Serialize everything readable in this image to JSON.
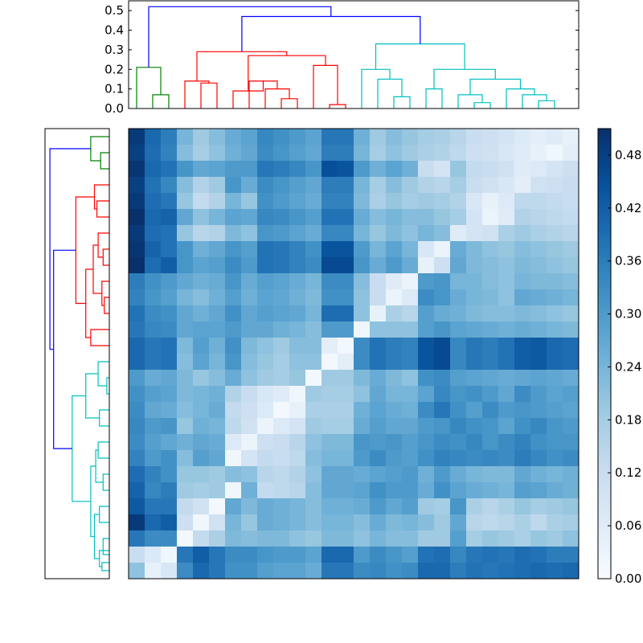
{
  "chart_data": {
    "type": "heatmap",
    "title": "",
    "description": "Clustered distance matrix with row and column dendrograms",
    "n": 28,
    "matrix": [
      [
        0.49,
        0.4,
        0.36,
        0.24,
        0.19,
        0.22,
        0.26,
        0.28,
        0.34,
        0.32,
        0.3,
        0.28,
        0.37,
        0.37,
        0.25,
        0.19,
        0.22,
        0.2,
        0.18,
        0.17,
        0.15,
        0.12,
        0.11,
        0.09,
        0.07,
        0.05,
        0.06,
        0.04
      ],
      [
        0.48,
        0.39,
        0.35,
        0.22,
        0.18,
        0.21,
        0.25,
        0.27,
        0.33,
        0.31,
        0.29,
        0.27,
        0.36,
        0.36,
        0.24,
        0.18,
        0.21,
        0.19,
        0.17,
        0.16,
        0.14,
        0.11,
        0.1,
        0.08,
        0.06,
        0.04,
        0.02,
        0.05
      ],
      [
        0.5,
        0.4,
        0.38,
        0.31,
        0.27,
        0.28,
        0.3,
        0.3,
        0.37,
        0.36,
        0.34,
        0.31,
        0.45,
        0.44,
        0.3,
        0.25,
        0.28,
        0.25,
        0.12,
        0.09,
        0.2,
        0.13,
        0.12,
        0.1,
        0.06,
        0.07,
        0.09,
        0.11
      ],
      [
        0.48,
        0.38,
        0.34,
        0.22,
        0.16,
        0.19,
        0.31,
        0.26,
        0.33,
        0.31,
        0.29,
        0.27,
        0.36,
        0.36,
        0.24,
        0.18,
        0.22,
        0.19,
        0.16,
        0.15,
        0.18,
        0.12,
        0.1,
        0.08,
        0.05,
        0.1,
        0.11,
        0.12
      ],
      [
        0.49,
        0.39,
        0.37,
        0.2,
        0.13,
        0.16,
        0.24,
        0.2,
        0.32,
        0.3,
        0.28,
        0.26,
        0.35,
        0.35,
        0.23,
        0.17,
        0.2,
        0.18,
        0.19,
        0.18,
        0.16,
        0.08,
        0.04,
        0.07,
        0.14,
        0.14,
        0.13,
        0.12
      ],
      [
        0.51,
        0.4,
        0.41,
        0.27,
        0.21,
        0.24,
        0.28,
        0.27,
        0.34,
        0.33,
        0.31,
        0.29,
        0.38,
        0.38,
        0.26,
        0.22,
        0.24,
        0.22,
        0.22,
        0.2,
        0.18,
        0.09,
        0.03,
        0.06,
        0.16,
        0.15,
        0.14,
        0.13
      ],
      [
        0.49,
        0.39,
        0.38,
        0.2,
        0.15,
        0.16,
        0.23,
        0.21,
        0.31,
        0.3,
        0.28,
        0.26,
        0.34,
        0.34,
        0.24,
        0.2,
        0.23,
        0.21,
        0.24,
        0.22,
        0.06,
        0.09,
        0.1,
        0.17,
        0.19,
        0.17,
        0.16,
        0.15
      ],
      [
        0.5,
        0.41,
        0.38,
        0.31,
        0.25,
        0.27,
        0.31,
        0.29,
        0.38,
        0.37,
        0.35,
        0.32,
        0.44,
        0.44,
        0.3,
        0.24,
        0.28,
        0.24,
        0.08,
        0.03,
        0.26,
        0.23,
        0.21,
        0.2,
        0.22,
        0.21,
        0.2,
        0.19
      ],
      [
        0.51,
        0.39,
        0.42,
        0.31,
        0.28,
        0.29,
        0.33,
        0.3,
        0.38,
        0.37,
        0.35,
        0.33,
        0.46,
        0.46,
        0.31,
        0.26,
        0.3,
        0.26,
        0.04,
        0.11,
        0.27,
        0.23,
        0.22,
        0.21,
        0.23,
        0.22,
        0.21,
        0.2
      ],
      [
        0.36,
        0.32,
        0.3,
        0.27,
        0.25,
        0.26,
        0.31,
        0.26,
        0.29,
        0.28,
        0.26,
        0.24,
        0.33,
        0.33,
        0.22,
        0.12,
        0.06,
        0.03,
        0.3,
        0.31,
        0.24,
        0.24,
        0.22,
        0.21,
        0.24,
        0.23,
        0.23,
        0.22
      ],
      [
        0.35,
        0.31,
        0.29,
        0.24,
        0.22,
        0.25,
        0.29,
        0.25,
        0.28,
        0.27,
        0.25,
        0.23,
        0.32,
        0.32,
        0.21,
        0.12,
        0.03,
        0.07,
        0.33,
        0.31,
        0.26,
        0.24,
        0.23,
        0.21,
        0.27,
        0.26,
        0.25,
        0.24
      ],
      [
        0.38,
        0.33,
        0.32,
        0.27,
        0.25,
        0.27,
        0.32,
        0.27,
        0.29,
        0.28,
        0.27,
        0.24,
        0.39,
        0.39,
        0.21,
        0.04,
        0.17,
        0.15,
        0.29,
        0.26,
        0.25,
        0.23,
        0.22,
        0.22,
        0.23,
        0.22,
        0.21,
        0.2
      ],
      [
        0.37,
        0.34,
        0.33,
        0.27,
        0.28,
        0.28,
        0.3,
        0.27,
        0.27,
        0.25,
        0.24,
        0.22,
        0.3,
        0.3,
        0.02,
        0.21,
        0.21,
        0.21,
        0.29,
        0.31,
        0.28,
        0.27,
        0.26,
        0.25,
        0.26,
        0.25,
        0.24,
        0.23
      ],
      [
        0.4,
        0.37,
        0.38,
        0.23,
        0.29,
        0.25,
        0.32,
        0.23,
        0.21,
        0.19,
        0.22,
        0.22,
        0.05,
        0.01,
        0.33,
        0.38,
        0.36,
        0.35,
        0.44,
        0.46,
        0.34,
        0.37,
        0.36,
        0.38,
        0.42,
        0.43,
        0.4,
        0.39
      ],
      [
        0.4,
        0.37,
        0.38,
        0.22,
        0.28,
        0.24,
        0.31,
        0.22,
        0.2,
        0.18,
        0.21,
        0.21,
        0.01,
        0.05,
        0.33,
        0.38,
        0.36,
        0.35,
        0.44,
        0.46,
        0.34,
        0.37,
        0.36,
        0.38,
        0.42,
        0.43,
        0.4,
        0.39
      ],
      [
        0.3,
        0.26,
        0.27,
        0.23,
        0.2,
        0.22,
        0.26,
        0.21,
        0.19,
        0.18,
        0.2,
        0.01,
        0.19,
        0.19,
        0.23,
        0.26,
        0.23,
        0.21,
        0.32,
        0.33,
        0.29,
        0.28,
        0.27,
        0.26,
        0.27,
        0.28,
        0.27,
        0.26
      ],
      [
        0.32,
        0.29,
        0.28,
        0.23,
        0.24,
        0.25,
        0.16,
        0.12,
        0.08,
        0.06,
        0.02,
        0.19,
        0.18,
        0.18,
        0.21,
        0.27,
        0.24,
        0.24,
        0.28,
        0.34,
        0.31,
        0.32,
        0.3,
        0.27,
        0.33,
        0.3,
        0.28,
        0.29
      ],
      [
        0.33,
        0.27,
        0.26,
        0.22,
        0.24,
        0.26,
        0.13,
        0.11,
        0.07,
        0.01,
        0.04,
        0.17,
        0.17,
        0.17,
        0.25,
        0.28,
        0.26,
        0.25,
        0.33,
        0.37,
        0.32,
        0.29,
        0.33,
        0.3,
        0.31,
        0.3,
        0.29,
        0.28
      ],
      [
        0.34,
        0.3,
        0.31,
        0.2,
        0.25,
        0.24,
        0.14,
        0.1,
        0.03,
        0.07,
        0.09,
        0.19,
        0.18,
        0.18,
        0.26,
        0.29,
        0.27,
        0.27,
        0.3,
        0.31,
        0.34,
        0.32,
        0.31,
        0.28,
        0.32,
        0.34,
        0.31,
        0.3
      ],
      [
        0.33,
        0.29,
        0.27,
        0.25,
        0.27,
        0.26,
        0.07,
        0.03,
        0.11,
        0.12,
        0.15,
        0.21,
        0.23,
        0.23,
        0.31,
        0.3,
        0.31,
        0.29,
        0.31,
        0.33,
        0.32,
        0.34,
        0.31,
        0.33,
        0.35,
        0.32,
        0.31,
        0.31
      ],
      [
        0.35,
        0.3,
        0.32,
        0.22,
        0.29,
        0.27,
        0.02,
        0.09,
        0.13,
        0.12,
        0.14,
        0.22,
        0.24,
        0.24,
        0.3,
        0.33,
        0.3,
        0.29,
        0.32,
        0.35,
        0.34,
        0.33,
        0.34,
        0.33,
        0.36,
        0.34,
        0.32,
        0.33
      ],
      [
        0.39,
        0.35,
        0.32,
        0.2,
        0.2,
        0.19,
        0.22,
        0.21,
        0.15,
        0.14,
        0.16,
        0.21,
        0.27,
        0.27,
        0.26,
        0.28,
        0.29,
        0.3,
        0.25,
        0.3,
        0.26,
        0.24,
        0.23,
        0.23,
        0.27,
        0.25,
        0.24,
        0.25
      ],
      [
        0.41,
        0.34,
        0.36,
        0.19,
        0.18,
        0.19,
        0.02,
        0.25,
        0.13,
        0.14,
        0.15,
        0.22,
        0.27,
        0.27,
        0.28,
        0.32,
        0.3,
        0.3,
        0.26,
        0.32,
        0.28,
        0.26,
        0.25,
        0.24,
        0.29,
        0.28,
        0.26,
        0.25
      ],
      [
        0.43,
        0.37,
        0.37,
        0.13,
        0.1,
        0.01,
        0.27,
        0.23,
        0.26,
        0.25,
        0.24,
        0.22,
        0.25,
        0.25,
        0.26,
        0.3,
        0.27,
        0.29,
        0.19,
        0.18,
        0.31,
        0.17,
        0.15,
        0.17,
        0.2,
        0.18,
        0.19,
        0.2
      ],
      [
        0.49,
        0.4,
        0.42,
        0.11,
        0.02,
        0.1,
        0.24,
        0.2,
        0.26,
        0.25,
        0.24,
        0.22,
        0.24,
        0.24,
        0.22,
        0.26,
        0.23,
        0.24,
        0.22,
        0.19,
        0.27,
        0.15,
        0.14,
        0.15,
        0.17,
        0.14,
        0.17,
        0.18
      ],
      [
        0.37,
        0.33,
        0.33,
        0.01,
        0.13,
        0.17,
        0.23,
        0.22,
        0.23,
        0.23,
        0.21,
        0.2,
        0.23,
        0.23,
        0.21,
        0.24,
        0.22,
        0.22,
        0.19,
        0.19,
        0.29,
        0.18,
        0.2,
        0.19,
        0.17,
        0.2,
        0.19,
        0.21
      ],
      [
        0.12,
        0.07,
        0.02,
        0.37,
        0.42,
        0.37,
        0.33,
        0.33,
        0.31,
        0.3,
        0.3,
        0.28,
        0.4,
        0.4,
        0.3,
        0.33,
        0.31,
        0.29,
        0.38,
        0.39,
        0.34,
        0.37,
        0.38,
        0.37,
        0.39,
        0.38,
        0.36,
        0.36
      ],
      [
        0.21,
        0.04,
        0.08,
        0.33,
        0.4,
        0.37,
        0.32,
        0.32,
        0.29,
        0.28,
        0.28,
        0.26,
        0.37,
        0.37,
        0.33,
        0.34,
        0.32,
        0.33,
        0.4,
        0.4,
        0.36,
        0.38,
        0.37,
        0.38,
        0.39,
        0.4,
        0.39,
        0.4
      ]
    ],
    "vmin": 0.0,
    "vmax": 0.51,
    "colormap": "Blues",
    "colorbar": {
      "ticks": [
        "0.00",
        "0.06",
        "0.12",
        "0.18",
        "0.24",
        "0.30",
        "0.36",
        "0.42",
        "0.48"
      ],
      "ticklabels": [
        "0.00",
        "0.06",
        "0.12",
        "0.18",
        "0.24",
        "0.30",
        "0.36",
        "0.42",
        "0.48"
      ]
    },
    "top_dendrogram": {
      "orientation": "top",
      "ylim": [
        0,
        0.55
      ],
      "yticks": [
        "0.0",
        "0.1",
        "0.2",
        "0.3",
        "0.4",
        "0.5"
      ],
      "links": [
        {
          "leaves": [
            1,
            2
          ],
          "h": 0.07,
          "color": "#008000"
        },
        {
          "leaves": [
            0,
            1.5
          ],
          "h": 0.21,
          "color": "#008000"
        },
        {
          "leaves": [
            4,
            5
          ],
          "h": 0.13,
          "color": "#ff0000"
        },
        {
          "leaves": [
            3,
            4.5
          ],
          "h": 0.14,
          "color": "#ff0000"
        },
        {
          "leaves": [
            9,
            10
          ],
          "h": 0.05,
          "color": "#ff0000"
        },
        {
          "leaves": [
            8,
            9.5
          ],
          "h": 0.1,
          "color": "#ff0000"
        },
        {
          "leaves": [
            7,
            8.75
          ],
          "h": 0.14,
          "color": "#ff0000"
        },
        {
          "leaves": [
            6,
            7.875
          ],
          "h": 0.09,
          "color": "#ff0000"
        },
        {
          "leaves": [
            12,
            13
          ],
          "h": 0.02,
          "color": "#ff0000"
        },
        {
          "leaves": [
            11,
            12.5
          ],
          "h": 0.22,
          "color": "#ff0000"
        },
        {
          "leaves": [
            6.9375,
            11.75
          ],
          "h": 0.27,
          "color": "#ff0000"
        },
        {
          "leaves": [
            3.75,
            9.34
          ],
          "h": 0.29,
          "color": "#ff0000"
        },
        {
          "leaves": [
            16,
            17
          ],
          "h": 0.06,
          "color": "#00bfbf"
        },
        {
          "leaves": [
            15,
            16.5
          ],
          "h": 0.15,
          "color": "#00bfbf"
        },
        {
          "leaves": [
            14,
            15.75
          ],
          "h": 0.2,
          "color": "#00bfbf"
        },
        {
          "leaves": [
            18,
            19
          ],
          "h": 0.1,
          "color": "#00bfbf"
        },
        {
          "leaves": [
            21,
            22
          ],
          "h": 0.03,
          "color": "#00bfbf"
        },
        {
          "leaves": [
            20,
            21.5
          ],
          "h": 0.07,
          "color": "#00bfbf"
        },
        {
          "leaves": [
            25,
            26
          ],
          "h": 0.04,
          "color": "#00bfbf"
        },
        {
          "leaves": [
            24,
            25.5
          ],
          "h": 0.07,
          "color": "#00bfbf"
        },
        {
          "leaves": [
            23,
            24.75
          ],
          "h": 0.1,
          "color": "#00bfbf"
        },
        {
          "leaves": [
            20.75,
            23.875
          ],
          "h": 0.15,
          "color": "#00bfbf"
        },
        {
          "leaves": [
            18.5,
            22.3125
          ],
          "h": 0.2,
          "color": "#00bfbf"
        },
        {
          "leaves": [
            14.875,
            20.40625
          ],
          "h": 0.33,
          "color": "#00bfbf"
        },
        {
          "leaves": [
            6.545,
            17.640625
          ],
          "h": 0.47,
          "color": "#0000ff"
        },
        {
          "leaves": [
            0.75,
            12.09
          ],
          "h": 0.52,
          "color": "#0000ff"
        }
      ]
    },
    "left_dendrogram": {
      "orientation": "left",
      "links": [
        {
          "leaves": [
            1,
            2
          ],
          "h": 0.07,
          "color": "#008000"
        },
        {
          "leaves": [
            0,
            1.5
          ],
          "h": 0.15,
          "color": "#008000"
        },
        {
          "leaves": [
            4,
            5
          ],
          "h": 0.1,
          "color": "#ff0000"
        },
        {
          "leaves": [
            3,
            4.5
          ],
          "h": 0.12,
          "color": "#ff0000"
        },
        {
          "leaves": [
            7,
            8
          ],
          "h": 0.05,
          "color": "#ff0000"
        },
        {
          "leaves": [
            6,
            7.5
          ],
          "h": 0.09,
          "color": "#ff0000"
        },
        {
          "leaves": [
            10,
            11
          ],
          "h": 0.04,
          "color": "#ff0000"
        },
        {
          "leaves": [
            9,
            10.5
          ],
          "h": 0.06,
          "color": "#ff0000"
        },
        {
          "leaves": [
            6.75,
            9.75
          ],
          "h": 0.13,
          "color": "#ff0000"
        },
        {
          "leaves": [
            12,
            13
          ],
          "h": 0.15,
          "color": "#ff0000"
        },
        {
          "leaves": [
            8.25,
            12.5
          ],
          "h": 0.19,
          "color": "#ff0000"
        },
        {
          "leaves": [
            3.75,
            10.375
          ],
          "h": 0.27,
          "color": "#ff0000"
        },
        {
          "leaves": [
            15,
            16
          ],
          "h": 0.02,
          "color": "#00bfbf"
        },
        {
          "leaves": [
            14,
            15.5
          ],
          "h": 0.09,
          "color": "#00bfbf"
        },
        {
          "leaves": [
            17,
            18
          ],
          "h": 0.08,
          "color": "#00bfbf"
        },
        {
          "leaves": [
            14.75,
            17.5
          ],
          "h": 0.19,
          "color": "#00bfbf"
        },
        {
          "leaves": [
            19,
            20
          ],
          "h": 0.09,
          "color": "#00bfbf"
        },
        {
          "leaves": [
            21,
            22
          ],
          "h": 0.05,
          "color": "#00bfbf"
        },
        {
          "leaves": [
            19.5,
            21.5
          ],
          "h": 0.11,
          "color": "#00bfbf"
        },
        {
          "leaves": [
            23,
            24
          ],
          "h": 0.08,
          "color": "#00bfbf"
        },
        {
          "leaves": [
            25,
            26
          ],
          "h": 0.05,
          "color": "#00bfbf"
        },
        {
          "leaves": [
            26.5,
            27
          ],
          "h": 0.06,
          "color": "#00bfbf"
        },
        {
          "leaves": [
            25.75,
            26.75
          ],
          "h": 0.08,
          "color": "#00bfbf"
        },
        {
          "leaves": [
            23.5,
            26.25
          ],
          "h": 0.12,
          "color": "#00bfbf"
        },
        {
          "leaves": [
            20.5,
            24.875
          ],
          "h": 0.15,
          "color": "#00bfbf"
        },
        {
          "leaves": [
            16.125,
            22.6875
          ],
          "h": 0.3,
          "color": "#00bfbf"
        },
        {
          "leaves": [
            7.0625,
            19.40625
          ],
          "h": 0.45,
          "color": "#0000ff"
        },
        {
          "leaves": [
            0.75,
            13.234
          ],
          "h": 0.48,
          "color": "#0000ff"
        }
      ]
    }
  }
}
